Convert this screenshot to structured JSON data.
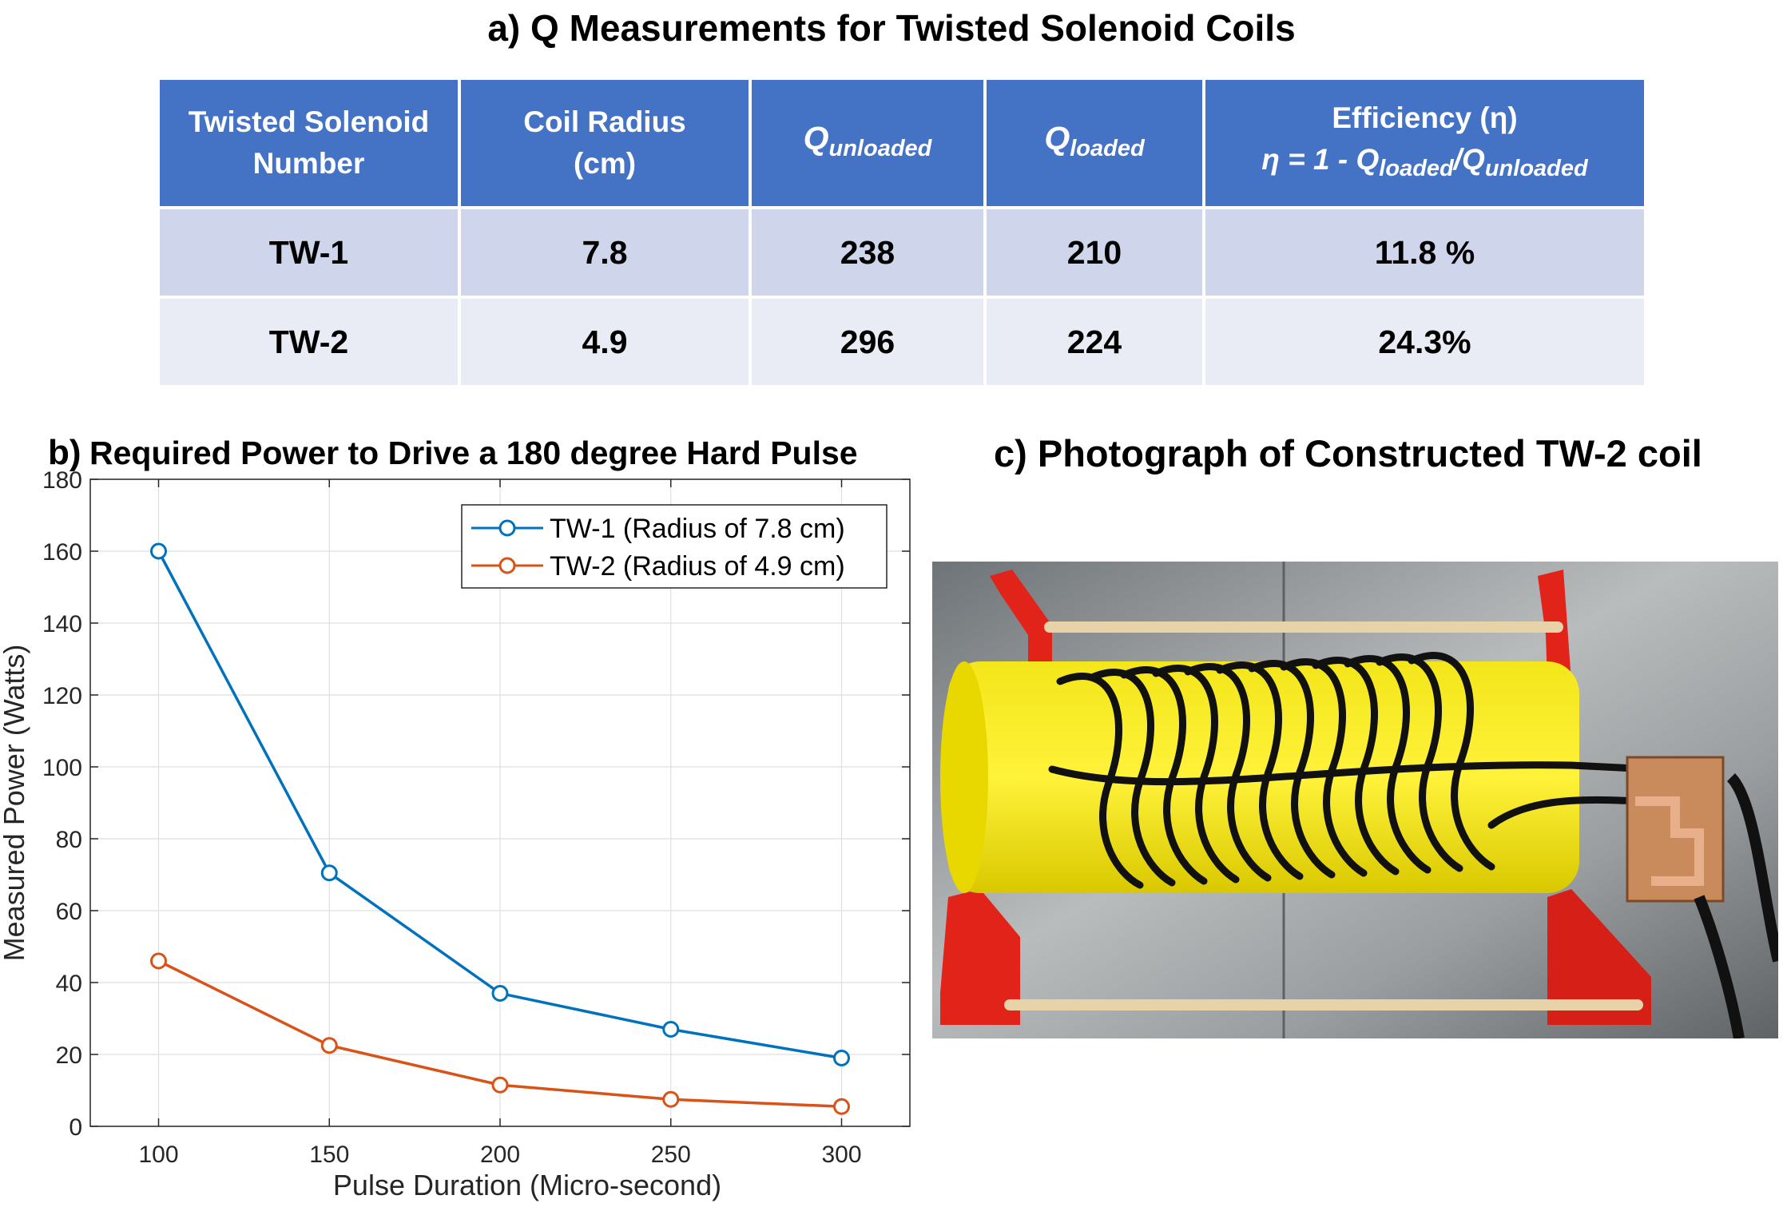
{
  "table": {
    "title": "a) Q Measurements for Twisted Solenoid Coils",
    "headers": {
      "col1_line1": "Twisted Solenoid",
      "col1_line2": "Number",
      "col2_line1": "Coil Radius",
      "col2_line2": "(cm)",
      "col3_main": "Q",
      "col3_sub": "unloaded",
      "col4_main": "Q",
      "col4_sub": "loaded",
      "col5_line1": "Efficiency (η)",
      "col5_eq_prefix": "η = 1 - Q",
      "col5_eq_sub1": "loaded",
      "col5_eq_mid": "/Q",
      "col5_eq_sub2": "unloaded"
    },
    "rows": [
      {
        "name": "TW-1",
        "radius": "7.8",
        "q_unloaded": "238",
        "q_loaded": "210",
        "efficiency": "11.8 %"
      },
      {
        "name": "TW-2",
        "radius": "4.9",
        "q_unloaded": "296",
        "q_loaded": "224",
        "efficiency": "24.3%"
      }
    ],
    "colors": {
      "header_bg": "#4472c4",
      "row1_bg": "#cfd5ea",
      "row2_bg": "#e9ebf5"
    }
  },
  "panel_b_label": "b)",
  "panel_c_title": "c) Photograph of Constructed TW-2 coil",
  "chart_data": {
    "type": "line",
    "title": "Required Power to Drive a 180 degree Hard Pulse",
    "xlabel": "Pulse Duration (Micro-second)",
    "ylabel": "Measured Power (Watts)",
    "x": [
      100,
      150,
      200,
      250,
      300
    ],
    "xlim": [
      80,
      320
    ],
    "ylim": [
      0,
      180
    ],
    "xticks": [
      100,
      150,
      200,
      250,
      300
    ],
    "yticks": [
      0,
      20,
      40,
      60,
      80,
      100,
      120,
      140,
      160,
      180
    ],
    "grid": true,
    "legend_position": "top-right",
    "series": [
      {
        "name": "TW-1 (Radius of 7.8 cm)",
        "color": "#0072bd",
        "values": [
          160,
          70.5,
          37,
          27,
          19
        ]
      },
      {
        "name": "TW-2 (Radius of 4.9 cm)",
        "color": "#d95319",
        "values": [
          46,
          22.5,
          11.5,
          7.5,
          5.5
        ]
      }
    ]
  }
}
